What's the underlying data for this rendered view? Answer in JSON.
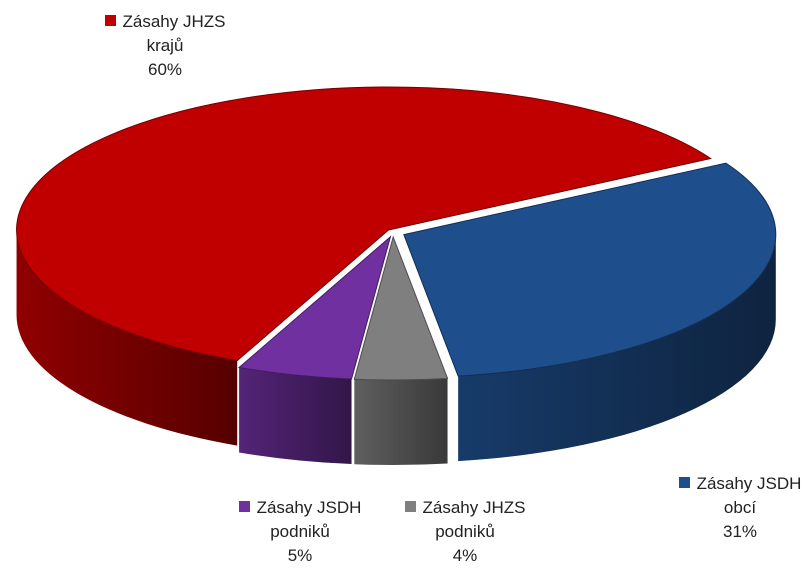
{
  "chart_data": {
    "type": "pie3d",
    "categories": [
      "Zásahy JHZS krajů",
      "Zásahy JSDH obcí",
      "Zásahy JHZS podniků",
      "Zásahy JSDH podniků"
    ],
    "values": [
      60,
      31,
      4,
      5
    ],
    "value_labels": [
      "60%",
      "31%",
      "4%",
      "5%"
    ],
    "colors": [
      "#c00000",
      "#1f4e8c",
      "#7f7f7f",
      "#7030a0"
    ]
  }
}
